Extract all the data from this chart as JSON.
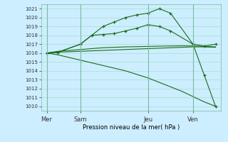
{
  "background_color": "#cceeff",
  "grid_color": "#aaddcc",
  "line_color": "#1a6b1a",
  "xlabel": "Pression niveau de la mer( hPa )",
  "ylim": [
    1009.5,
    1021.5
  ],
  "yticks": [
    1010,
    1011,
    1012,
    1013,
    1014,
    1015,
    1016,
    1017,
    1018,
    1019,
    1020,
    1021
  ],
  "day_labels": [
    "Mer",
    "Sam",
    "Jeu",
    "Ven"
  ],
  "day_positions": [
    0,
    3,
    9,
    13
  ],
  "figsize": [
    3.2,
    2.0
  ],
  "dpi": 100,
  "series": [
    {
      "x": [
        0,
        1,
        2,
        3,
        4,
        5,
        6,
        7,
        8,
        9,
        10,
        11,
        12,
        13,
        14,
        15
      ],
      "y": [
        1016.0,
        1016.1,
        1016.15,
        1016.2,
        1016.25,
        1016.3,
        1016.35,
        1016.4,
        1016.45,
        1016.5,
        1016.55,
        1016.6,
        1016.65,
        1016.7,
        1016.7,
        1016.65
      ],
      "marker": false
    },
    {
      "x": [
        0,
        1,
        2,
        3,
        4,
        5,
        6,
        7,
        8,
        9,
        10,
        11,
        12,
        13,
        14,
        15
      ],
      "y": [
        1016.0,
        1016.2,
        1016.3,
        1016.4,
        1016.5,
        1016.6,
        1016.65,
        1016.7,
        1016.72,
        1016.75,
        1016.78,
        1016.8,
        1016.82,
        1016.8,
        1016.75,
        1016.7
      ],
      "marker": false
    },
    {
      "x": [
        0,
        1,
        3,
        4,
        5,
        6,
        7,
        8,
        9,
        10,
        11,
        13,
        14,
        15
      ],
      "y": [
        1016.0,
        1016.1,
        1017.0,
        1018.0,
        1018.1,
        1018.2,
        1018.5,
        1018.8,
        1019.2,
        1019.0,
        1018.5,
        1017.0,
        1016.8,
        1017.0
      ],
      "marker": true
    },
    {
      "x": [
        0,
        1,
        3,
        5,
        6,
        7,
        8,
        9,
        10,
        11,
        13,
        14,
        15
      ],
      "y": [
        1016.0,
        1016.1,
        1017.0,
        1019.0,
        1019.5,
        1020.0,
        1020.3,
        1020.5,
        1021.0,
        1020.5,
        1017.0,
        1013.5,
        1010.0
      ],
      "marker": true
    },
    {
      "x": [
        0,
        1,
        2,
        3,
        4,
        5,
        6,
        7,
        8,
        9,
        10,
        11,
        12,
        13,
        14,
        15
      ],
      "y": [
        1016.0,
        1015.8,
        1015.5,
        1015.2,
        1014.9,
        1014.6,
        1014.3,
        1014.0,
        1013.6,
        1013.2,
        1012.7,
        1012.2,
        1011.7,
        1011.1,
        1010.5,
        1010.0
      ],
      "marker": false
    }
  ]
}
